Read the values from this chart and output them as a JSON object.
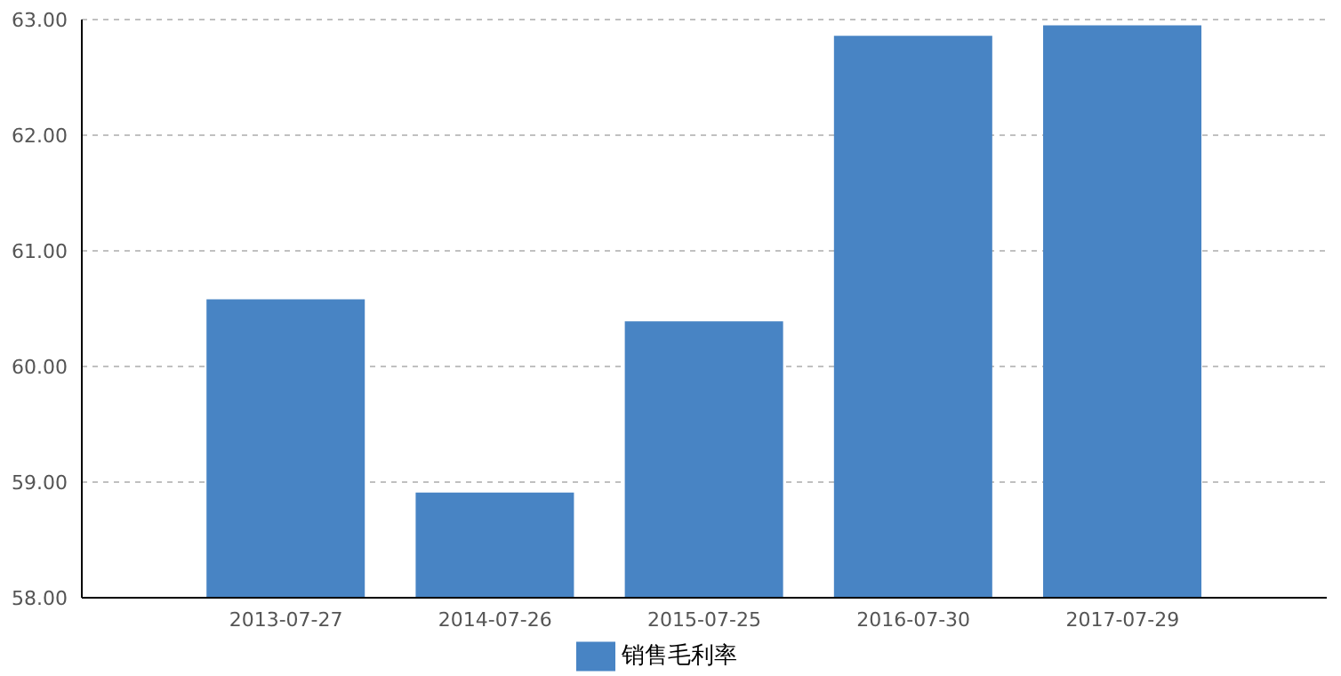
{
  "chart_data": {
    "type": "bar",
    "categories": [
      "2013-07-27",
      "2014-07-26",
      "2015-07-25",
      "2016-07-30",
      "2017-07-29"
    ],
    "series": [
      {
        "name": "销售毛利率",
        "color": "#4884c4",
        "values": [
          60.58,
          58.91,
          60.39,
          62.86,
          62.95
        ]
      }
    ],
    "ylim": [
      58,
      63
    ],
    "yticks": [
      {
        "value": 58,
        "label": "58.00"
      },
      {
        "value": 59,
        "label": "59.00"
      },
      {
        "value": 60,
        "label": "60.00"
      },
      {
        "value": 61,
        "label": "61.00"
      },
      {
        "value": 62,
        "label": "62.00"
      },
      {
        "value": 63,
        "label": "63.00"
      }
    ],
    "grid": "y",
    "legend": "bottom"
  }
}
